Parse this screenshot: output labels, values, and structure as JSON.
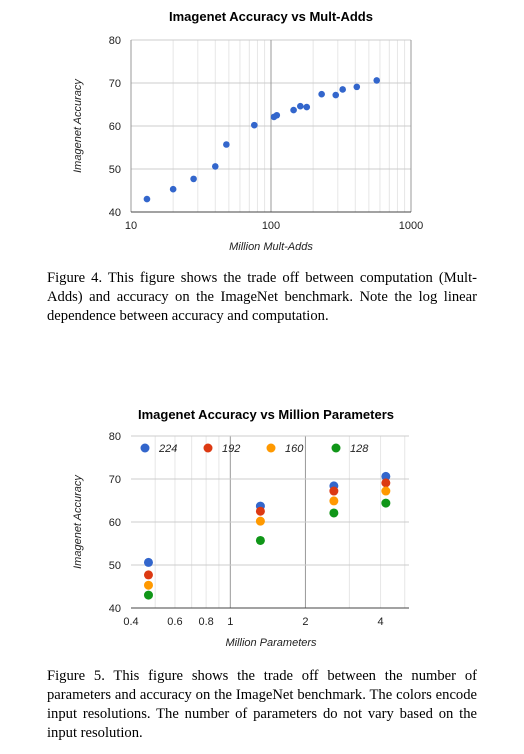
{
  "figure4": {
    "caption": "Figure 4. This figure shows the trade off between computation (Mult-Adds) and accuracy on the ImageNet benchmark. Note the log linear dependence between accuracy and computation."
  },
  "figure5": {
    "caption": "Figure 5. This figure shows the trade off between the number of parameters and accuracy on the ImageNet benchmark. The colors encode input resolutions. The number of parameters do not vary based on the input resolution."
  },
  "chart_data": [
    {
      "type": "scatter",
      "title": "Imagenet Accuracy vs Mult-Adds",
      "xlabel": "Million Mult-Adds",
      "ylabel": "Imagenet Accuracy",
      "x_scale": "log",
      "xlim": [
        10,
        1000
      ],
      "ylim": [
        40,
        80
      ],
      "x_ticks": [
        10,
        100,
        1000
      ],
      "y_ticks": [
        40,
        50,
        60,
        70,
        80
      ],
      "grid": true,
      "color": "#3366cc",
      "series": [
        {
          "x": [
            13,
            20,
            28,
            40,
            48,
            76,
            105,
            110,
            145,
            162,
            180,
            230,
            290,
            325,
            410,
            569
          ],
          "y": [
            43,
            45.3,
            47.7,
            50.6,
            55.7,
            60.2,
            62.1,
            62.5,
            63.7,
            64.6,
            64.4,
            67.4,
            67.2,
            68.5,
            69.1,
            70.6
          ]
        }
      ]
    },
    {
      "type": "scatter",
      "title": "Imagenet Accuracy vs Million Parameters",
      "xlabel": "Million Parameters",
      "ylabel": "Imagenet Accuracy",
      "x_scale": "log",
      "xlim": [
        0.4,
        5.2
      ],
      "ylim": [
        40,
        80
      ],
      "x_ticks": [
        0.4,
        0.6,
        0.8,
        1,
        2,
        4
      ],
      "y_ticks": [
        40,
        50,
        60,
        70,
        80
      ],
      "grid": true,
      "legend_position": "top",
      "x": [
        0.47,
        1.32,
        2.6,
        4.2
      ],
      "series": [
        {
          "name": "224",
          "color": "#3366cc",
          "values": [
            50.6,
            63.7,
            68.4,
            70.6
          ]
        },
        {
          "name": "192",
          "color": "#dc3912",
          "values": [
            47.7,
            62.5,
            67.2,
            69.1
          ]
        },
        {
          "name": "160",
          "color": "#ff9900",
          "values": [
            45.3,
            60.2,
            64.9,
            67.2
          ]
        },
        {
          "name": "128",
          "color": "#109618",
          "values": [
            43.0,
            55.7,
            62.1,
            64.4
          ]
        }
      ]
    }
  ]
}
